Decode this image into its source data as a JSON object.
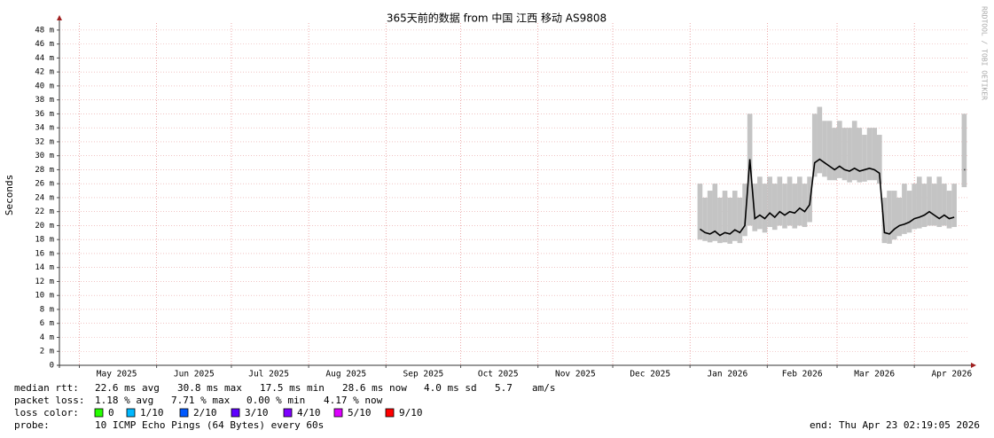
{
  "chart_data": {
    "type": "smokeping",
    "title": "365天前的数据 from 中国 江西 移动 AS9808",
    "ylabel": "Seconds",
    "watermark": "RRDTOOL / TOBI OETIKER",
    "ylim": [
      0,
      49
    ],
    "yticks": [
      {
        "value": 0,
        "label": "0"
      },
      {
        "value": 2,
        "label": "2 m"
      },
      {
        "value": 4,
        "label": "4 m"
      },
      {
        "value": 6,
        "label": "6 m"
      },
      {
        "value": 8,
        "label": "8 m"
      },
      {
        "value": 10,
        "label": "10 m"
      },
      {
        "value": 12,
        "label": "12 m"
      },
      {
        "value": 14,
        "label": "14 m"
      },
      {
        "value": 16,
        "label": "16 m"
      },
      {
        "value": 18,
        "label": "18 m"
      },
      {
        "value": 20,
        "label": "20 m"
      },
      {
        "value": 22,
        "label": "22 m"
      },
      {
        "value": 24,
        "label": "24 m"
      },
      {
        "value": 26,
        "label": "26 m"
      },
      {
        "value": 28,
        "label": "28 m"
      },
      {
        "value": 30,
        "label": "30 m"
      },
      {
        "value": 32,
        "label": "32 m"
      },
      {
        "value": 34,
        "label": "34 m"
      },
      {
        "value": 36,
        "label": "36 m"
      },
      {
        "value": 38,
        "label": "38 m"
      },
      {
        "value": 40,
        "label": "40 m"
      },
      {
        "value": 42,
        "label": "42 m"
      },
      {
        "value": 44,
        "label": "44 m"
      },
      {
        "value": 46,
        "label": "46 m"
      },
      {
        "value": 48,
        "label": "48 m"
      }
    ],
    "xlim": [
      0,
      365
    ],
    "xticks": [
      {
        "value": 23,
        "label": "May 2025"
      },
      {
        "value": 54,
        "label": "Jun 2025"
      },
      {
        "value": 84,
        "label": "Jul 2025"
      },
      {
        "value": 115,
        "label": "Aug 2025"
      },
      {
        "value": 146,
        "label": "Sep 2025"
      },
      {
        "value": 176,
        "label": "Oct 2025"
      },
      {
        "value": 207,
        "label": "Nov 2025"
      },
      {
        "value": 237,
        "label": "Dec 2025"
      },
      {
        "value": 268,
        "label": "Jan 2026"
      },
      {
        "value": 298,
        "label": "Feb 2026"
      },
      {
        "value": 327,
        "label": "Mar 2026"
      },
      {
        "value": 358,
        "label": "Apr 2026"
      }
    ],
    "xgrid": [
      8,
      39,
      69,
      100,
      131,
      161,
      192,
      222,
      253,
      284,
      312,
      343
    ],
    "grid": true,
    "median_color": "#000000",
    "smoke_color": "#c4c4c4",
    "x": [
      257,
      259,
      261,
      263,
      265,
      267,
      269,
      271,
      273,
      275,
      277,
      279,
      281,
      283,
      285,
      287,
      289,
      291,
      293,
      295,
      297,
      299,
      301,
      303,
      305,
      307,
      309,
      311,
      313,
      315,
      317,
      319,
      321,
      323,
      325,
      327,
      329,
      331,
      333,
      335,
      337,
      339,
      341,
      343,
      345,
      347,
      349,
      351,
      353,
      355,
      357,
      359,
      361,
      363
    ],
    "median": [
      19.5,
      19,
      18.8,
      19.2,
      18.6,
      19,
      18.8,
      19.4,
      19,
      20,
      29.5,
      21,
      21.5,
      21,
      21.8,
      21.2,
      22,
      21.5,
      22,
      21.8,
      22.5,
      22,
      23,
      29,
      29.5,
      29,
      28.5,
      28,
      28.5,
      28,
      27.8,
      28.2,
      27.8,
      28,
      28.2,
      28,
      27.5,
      19,
      18.8,
      19.5,
      20,
      20.2,
      20.5,
      21,
      21.2,
      21.5,
      22,
      21.5,
      21,
      21.5,
      21,
      21.2,
      null,
      28
    ],
    "min": [
      18,
      17.8,
      17.6,
      17.8,
      17.5,
      17.6,
      17.4,
      17.8,
      17.5,
      18.5,
      20,
      19.2,
      19.5,
      19,
      19.8,
      19.4,
      20,
      19.6,
      20,
      19.6,
      20,
      19.8,
      20.5,
      27,
      27.5,
      27,
      26.5,
      26.5,
      26.8,
      26.5,
      26.2,
      26.5,
      26.2,
      26.3,
      26.5,
      26.5,
      26,
      17.5,
      17.4,
      18,
      18.5,
      18.8,
      19,
      19.5,
      19.6,
      19.8,
      20,
      20,
      19.8,
      20,
      19.6,
      19.8,
      null,
      25.5
    ],
    "max": [
      26,
      24,
      25,
      26,
      24,
      25,
      24,
      25,
      24,
      26,
      36,
      26,
      27,
      26,
      27,
      26,
      27,
      26,
      27,
      26,
      27,
      26,
      27,
      36,
      37,
      35,
      35,
      34,
      35,
      34,
      34,
      35,
      34,
      33,
      34,
      34,
      33,
      24,
      25,
      25,
      24,
      26,
      25,
      26,
      27,
      26,
      27,
      26,
      27,
      26,
      25,
      26,
      null,
      36
    ]
  },
  "legend": {
    "median_rtt": [
      "median rtt:",
      "22.6 ms avg",
      "30.8 ms max",
      "17.5 ms min",
      "28.6 ms now",
      "4.0 ms sd",
      "5.7",
      "am/s"
    ],
    "packet_loss": [
      "packet loss:",
      "1.18 % avg",
      "7.71 % max",
      "0.00 % min",
      "4.17 % now"
    ],
    "loss_color": {
      "label": "loss color:",
      "items": [
        {
          "label": "0",
          "color": "#26ff00"
        },
        {
          "label": "1/10",
          "color": "#00b8ff"
        },
        {
          "label": "2/10",
          "color": "#0059ff"
        },
        {
          "label": "3/10",
          "color": "#5e00ff"
        },
        {
          "label": "4/10",
          "color": "#7e00ff"
        },
        {
          "label": "5/10",
          "color": "#dd00ff"
        },
        {
          "label": "9/10",
          "color": "#ff0000"
        }
      ]
    },
    "probe": [
      "probe:",
      "10 ICMP Echo Pings (64 Bytes) every 60s"
    ],
    "end": "end: Thu Apr 23 02:19:05 2026"
  }
}
